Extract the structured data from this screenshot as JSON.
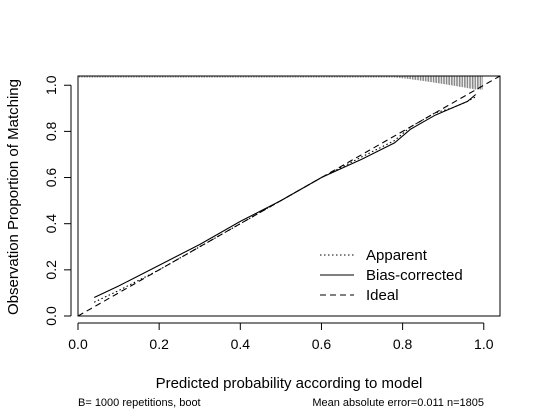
{
  "chart_data": {
    "type": "line",
    "title": "",
    "xlabel": "Predicted probability according to model",
    "ylabel": "Observation Proportion of Matching",
    "xlim": [
      0,
      1.04
    ],
    "ylim": [
      0,
      1.04
    ],
    "xticks": [
      "0.0",
      "0.2",
      "0.4",
      "0.6",
      "0.8",
      "1.0"
    ],
    "yticks": [
      "0.0",
      "0.2",
      "0.4",
      "0.6",
      "0.8",
      "1.0"
    ],
    "grid": false,
    "legend_position": "bottom-right",
    "series": [
      {
        "name": "Apparent",
        "style": "dotted",
        "x": [
          0.04,
          0.1,
          0.2,
          0.3,
          0.4,
          0.5,
          0.6,
          0.7,
          0.78,
          0.82,
          0.88,
          0.92,
          0.96,
          0.98
        ],
        "y": [
          0.06,
          0.11,
          0.2,
          0.3,
          0.4,
          0.5,
          0.6,
          0.69,
          0.76,
          0.82,
          0.88,
          0.9,
          0.93,
          0.95
        ]
      },
      {
        "name": "Bias-corrected",
        "style": "solid",
        "x": [
          0.04,
          0.1,
          0.2,
          0.3,
          0.4,
          0.5,
          0.6,
          0.7,
          0.78,
          0.82,
          0.88,
          0.92,
          0.96,
          0.98
        ],
        "y": [
          0.08,
          0.13,
          0.22,
          0.31,
          0.41,
          0.5,
          0.6,
          0.68,
          0.75,
          0.81,
          0.87,
          0.9,
          0.93,
          0.96
        ]
      },
      {
        "name": "Ideal",
        "style": "dashed",
        "x": [
          0,
          1.04
        ],
        "y": [
          0,
          1.04
        ]
      }
    ],
    "footer_left": "B= 1000 repetitions, boot",
    "footer_right": "Mean absolute error=0.011 n=1805"
  }
}
